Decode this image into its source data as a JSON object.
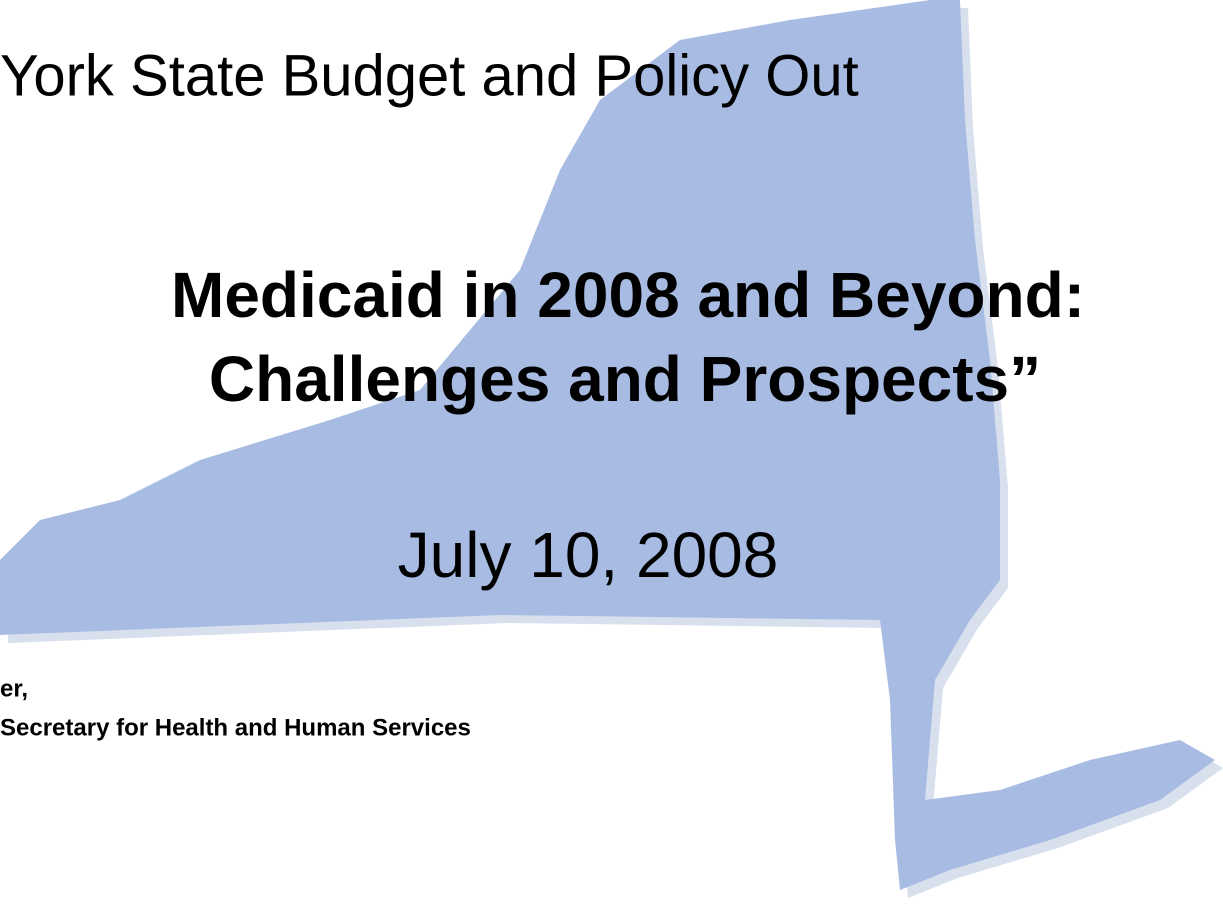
{
  "slide": {
    "title": "York State Budget and Policy Out",
    "subtitle_line1": "Medicaid in 2008 and Beyond:",
    "subtitle_line2": "Challenges and Prospects”",
    "date": "July 10, 2008",
    "presenter_line1": "er,",
    "presenter_line2": "Secretary for Health and Human Services"
  }
}
